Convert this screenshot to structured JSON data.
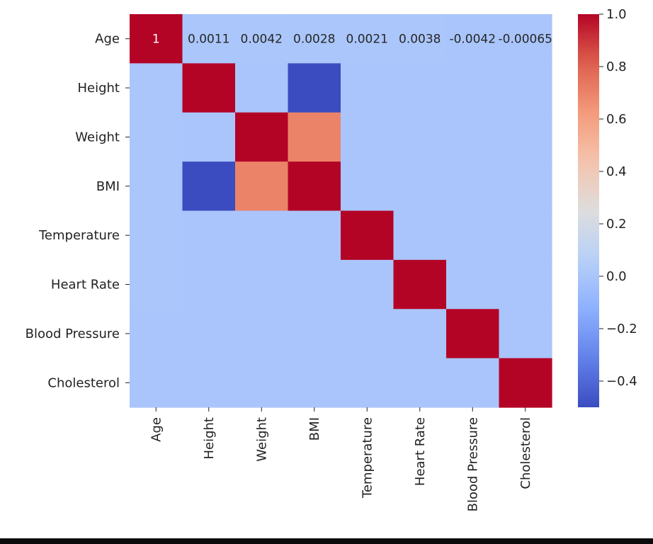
{
  "chart_data": {
    "type": "heatmap",
    "title": "",
    "xlabel": "",
    "ylabel": "",
    "x_labels": [
      "Age",
      "Height",
      "Weight",
      "BMI",
      "Temperature",
      "Heart Rate",
      "Blood Pressure",
      "Cholesterol"
    ],
    "y_labels": [
      "Age",
      "Height",
      "Weight",
      "BMI",
      "Temperature",
      "Heart Rate",
      "Blood Pressure",
      "Cholesterol"
    ],
    "matrix": [
      [
        1,
        0.0011,
        0.0042,
        0.0028,
        0.0021,
        0.0038,
        -0.0042,
        -0.00065
      ],
      [
        0.0011,
        1,
        0.0,
        -0.5,
        0.0,
        0.0,
        0.0,
        0.0
      ],
      [
        0.0042,
        0.0,
        1,
        0.7,
        0.0,
        0.0,
        0.0,
        0.0
      ],
      [
        0.0028,
        -0.5,
        0.7,
        1,
        0.0,
        0.0,
        0.0,
        0.0
      ],
      [
        0.0021,
        0.0,
        0.0,
        0.0,
        1,
        0.0,
        0.0,
        0.0
      ],
      [
        0.0038,
        0.0,
        0.0,
        0.0,
        0.0,
        1,
        0.0,
        0.0
      ],
      [
        -0.0042,
        0.0,
        0.0,
        0.0,
        0.0,
        0.0,
        1,
        0.0
      ],
      [
        -0.00065,
        0.0,
        0.0,
        0.0,
        0.0,
        0.0,
        0.0,
        1
      ]
    ],
    "annotations": [
      {
        "row": 0,
        "col": 0,
        "text": "1"
      },
      {
        "row": 0,
        "col": 1,
        "text": "0.0011"
      },
      {
        "row": 0,
        "col": 2,
        "text": "0.0042"
      },
      {
        "row": 0,
        "col": 3,
        "text": "0.0028"
      },
      {
        "row": 0,
        "col": 4,
        "text": "0.0021"
      },
      {
        "row": 0,
        "col": 5,
        "text": "0.0038"
      },
      {
        "row": 0,
        "col": 6,
        "text": "-0.0042"
      },
      {
        "row": 0,
        "col": 7,
        "text": "-0.00065"
      }
    ],
    "colormap": "coolwarm",
    "vmin": -0.5,
    "vmax": 1.0,
    "colorbar_ticks": [
      {
        "value": 1.0,
        "label": "1.0"
      },
      {
        "value": 0.8,
        "label": "0.8"
      },
      {
        "value": 0.6,
        "label": "0.6"
      },
      {
        "value": 0.4,
        "label": "0.4"
      },
      {
        "value": 0.2,
        "label": "0.2"
      },
      {
        "value": 0.0,
        "label": "0.0"
      },
      {
        "value": -0.2,
        "label": "−0.2"
      },
      {
        "value": -0.4,
        "label": "−0.4"
      }
    ],
    "colors": {
      "high": "#b40426",
      "mid": "#dddddd",
      "low": "#3b4cc0",
      "annotation_on_dark": "#ffffff",
      "annotation_on_light": "#262626"
    },
    "grid": false,
    "legend": "colorbar-right"
  }
}
